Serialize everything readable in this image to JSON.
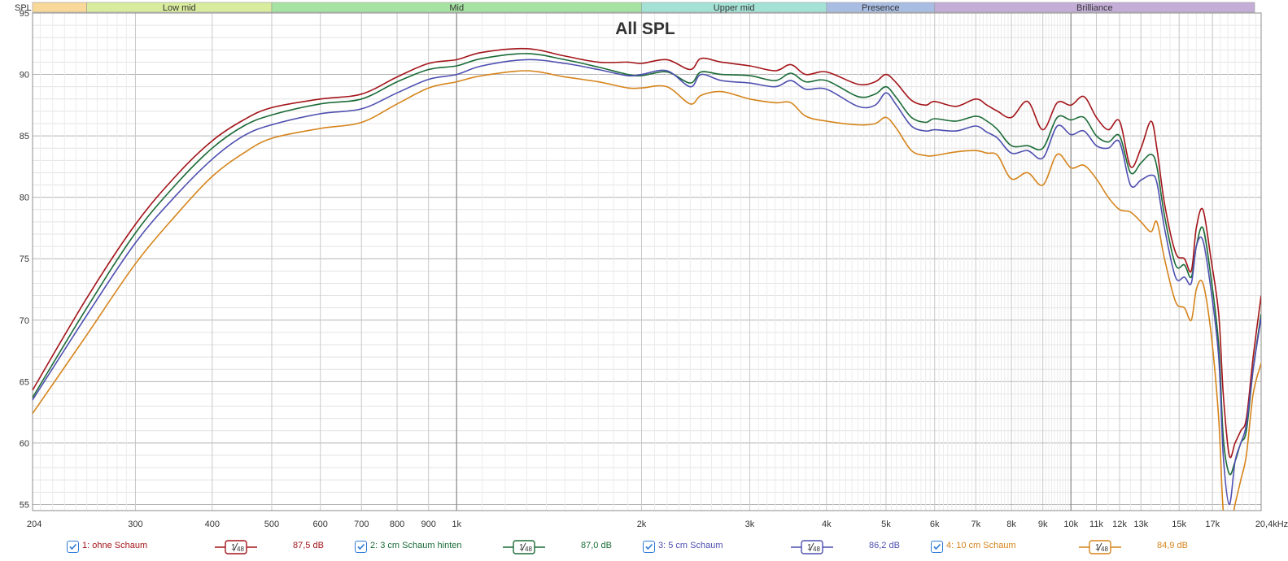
{
  "chart_data": {
    "type": "line",
    "title": "All SPL",
    "ylabel": "SPL",
    "x_scale": "log",
    "xlim": [
      204,
      20400
    ],
    "ylim": [
      54.5,
      95
    ],
    "x_unit_label": "20,4kHz",
    "x_ticks": [
      {
        "v": 204,
        "label": "204"
      },
      {
        "v": 300,
        "label": "300"
      },
      {
        "v": 400,
        "label": "400"
      },
      {
        "v": 500,
        "label": "500"
      },
      {
        "v": 600,
        "label": "600"
      },
      {
        "v": 700,
        "label": "700"
      },
      {
        "v": 800,
        "label": "800"
      },
      {
        "v": 900,
        "label": "900"
      },
      {
        "v": 1000,
        "label": "1k"
      },
      {
        "v": 2000,
        "label": "2k"
      },
      {
        "v": 3000,
        "label": "3k"
      },
      {
        "v": 4000,
        "label": "4k"
      },
      {
        "v": 5000,
        "label": "5k"
      },
      {
        "v": 6000,
        "label": "6k"
      },
      {
        "v": 7000,
        "label": "7k"
      },
      {
        "v": 8000,
        "label": "8k"
      },
      {
        "v": 9000,
        "label": "9k"
      },
      {
        "v": 10000,
        "label": "10k"
      },
      {
        "v": 11000,
        "label": "11k"
      },
      {
        "v": 12000,
        "label": "12k"
      },
      {
        "v": 13000,
        "label": "13k"
      },
      {
        "v": 15000,
        "label": "15k"
      },
      {
        "v": 17000,
        "label": "17k"
      }
    ],
    "y_ticks": [
      {
        "v": 95,
        "label": "95"
      },
      {
        "v": 90,
        "label": "90"
      },
      {
        "v": 85,
        "label": "85"
      },
      {
        "v": 80,
        "label": "80"
      },
      {
        "v": 75,
        "label": "75"
      },
      {
        "v": 70,
        "label": "70"
      },
      {
        "v": 65,
        "label": "65"
      },
      {
        "v": 60,
        "label": "60"
      },
      {
        "v": 55,
        "label": "55"
      }
    ],
    "bands": [
      {
        "name": "",
        "from": 204,
        "to": 250,
        "color": "#f8d99a"
      },
      {
        "name": "Low mid",
        "from": 250,
        "to": 500,
        "color": "#d9ec9e"
      },
      {
        "name": "Mid",
        "from": 500,
        "to": 2000,
        "color": "#a6e3a2"
      },
      {
        "name": "Upper mid",
        "from": 2000,
        "to": 4000,
        "color": "#a4e2d6"
      },
      {
        "name": "Presence",
        "from": 4000,
        "to": 6000,
        "color": "#a9bde3"
      },
      {
        "name": "Brilliance",
        "from": 6000,
        "to": 20000,
        "color": "#c4aed8"
      }
    ],
    "x": [
      204,
      250,
      300,
      350,
      400,
      450,
      500,
      600,
      700,
      800,
      900,
      1000,
      1100,
      1300,
      1500,
      1700,
      1900,
      2000,
      2200,
      2400,
      2500,
      2700,
      3000,
      3300,
      3500,
      3700,
      4000,
      4500,
      4800,
      5000,
      5200,
      5500,
      5800,
      6000,
      6500,
      7000,
      7300,
      7600,
      8000,
      8500,
      9000,
      9500,
      10000,
      10500,
      11000,
      11500,
      12000,
      12500,
      13000,
      13500,
      13800,
      14200,
      14800,
      15300,
      15700,
      16000,
      16400,
      16900,
      17400,
      17700,
      18100,
      18500,
      18900,
      19300,
      19800,
      20400
    ],
    "series": [
      {
        "name": "1: ohne Schaum",
        "color": "#a31419",
        "smoothing": "1/48",
        "level": "87,5 dB",
        "values": [
          64.3,
          71.8,
          77.8,
          81.8,
          84.6,
          86.3,
          87.3,
          88.0,
          88.4,
          89.8,
          90.9,
          91.2,
          91.8,
          92.1,
          91.5,
          91.0,
          91.0,
          90.9,
          91.2,
          90.4,
          91.3,
          91.0,
          90.7,
          90.3,
          90.8,
          90.0,
          90.2,
          89.2,
          89.4,
          90.0,
          89.3,
          87.9,
          87.5,
          87.8,
          87.4,
          88.0,
          87.5,
          87.0,
          86.5,
          87.8,
          85.5,
          87.7,
          87.5,
          88.2,
          86.5,
          85.5,
          86.2,
          82.5,
          84.0,
          86.2,
          84.0,
          79.5,
          75.5,
          75.0,
          74.0,
          77.5,
          79.0,
          75.0,
          70.5,
          64.0,
          59.0,
          60.0,
          61.0,
          62.0,
          67.0,
          72.0
        ]
      },
      {
        "name": "2: 3 cm Schaum hinten",
        "color": "#1b6b37",
        "smoothing": "1/48",
        "level": "87,0 dB",
        "values": [
          63.7,
          71.0,
          77.1,
          81.1,
          84.0,
          85.8,
          86.7,
          87.6,
          88.0,
          89.4,
          90.4,
          90.7,
          91.3,
          91.7,
          91.2,
          90.6,
          90.0,
          89.9,
          90.2,
          89.3,
          90.2,
          90.0,
          89.9,
          89.5,
          90.1,
          89.4,
          89.5,
          88.2,
          88.4,
          89.0,
          88.1,
          86.5,
          86.1,
          86.4,
          86.2,
          86.6,
          86.2,
          85.5,
          84.2,
          84.2,
          84.0,
          86.5,
          86.3,
          86.5,
          85.0,
          84.5,
          85.0,
          82.0,
          82.8,
          83.5,
          82.5,
          78.5,
          74.5,
          74.5,
          73.5,
          76.0,
          77.5,
          73.5,
          68.0,
          60.5,
          57.5,
          58.5,
          60.0,
          61.0,
          66.0,
          70.5
        ]
      },
      {
        "name": "3: 5 cm Schaum",
        "color": "#4e4fb0",
        "smoothing": "1/48",
        "level": "86,2 dB",
        "values": [
          63.5,
          70.4,
          76.3,
          80.2,
          83.1,
          85.0,
          85.9,
          86.8,
          87.2,
          88.5,
          89.6,
          90.0,
          90.7,
          91.2,
          90.9,
          90.4,
          89.9,
          90.0,
          90.3,
          89.0,
          90.0,
          89.5,
          89.3,
          89.0,
          89.5,
          88.8,
          88.8,
          87.4,
          87.5,
          88.5,
          87.5,
          85.8,
          85.4,
          85.5,
          85.4,
          85.8,
          85.3,
          84.8,
          83.6,
          83.8,
          83.2,
          85.8,
          85.1,
          85.4,
          84.2,
          84.0,
          84.5,
          81.0,
          81.4,
          81.8,
          81.2,
          77.5,
          73.5,
          73.5,
          73.0,
          76.0,
          76.5,
          72.5,
          67.0,
          59.0,
          55.0,
          58.5,
          60.0,
          61.5,
          66.0,
          70.2
        ]
      },
      {
        "name": "4: 10 cm Schaum",
        "color": "#d5841b",
        "smoothing": "1/48",
        "level": "84,9 dB",
        "values": [
          62.4,
          68.8,
          74.6,
          78.6,
          81.7,
          83.6,
          84.8,
          85.6,
          86.1,
          87.6,
          88.9,
          89.4,
          89.9,
          90.3,
          89.8,
          89.4,
          88.9,
          88.9,
          89.0,
          87.6,
          88.3,
          88.6,
          88.0,
          87.7,
          87.7,
          86.6,
          86.2,
          85.9,
          86.0,
          86.5,
          85.6,
          83.8,
          83.4,
          83.4,
          83.7,
          83.8,
          83.6,
          83.4,
          81.5,
          82.0,
          81.0,
          83.5,
          82.4,
          82.6,
          81.5,
          80.0,
          79.0,
          78.8,
          78.0,
          77.2,
          78.0,
          75.0,
          71.5,
          71.0,
          70.0,
          72.5,
          73.0,
          69.0,
          62.0,
          54.5,
          53.0,
          55.0,
          57.0,
          59.0,
          64.0,
          66.5
        ]
      }
    ]
  },
  "legend": [
    {
      "name": "1: ohne Schaum",
      "smooth_num": "1",
      "smooth_den": "48",
      "level": "87,5 dB",
      "color": "#a31419",
      "checked": true
    },
    {
      "name": "2: 3 cm Schaum hinten",
      "smooth_num": "1",
      "smooth_den": "48",
      "level": "87,0 dB",
      "color": "#1b6b37",
      "checked": true
    },
    {
      "name": "3: 5 cm Schaum",
      "smooth_num": "1",
      "smooth_den": "48",
      "level": "86,2 dB",
      "color": "#4e4fb0",
      "checked": true
    },
    {
      "name": "4: 10 cm Schaum",
      "smooth_num": "1",
      "smooth_den": "48",
      "level": "84,9 dB",
      "color": "#d5841b",
      "checked": true
    }
  ],
  "colors": {
    "grid": "#d6d6d6",
    "grid_major": "#9a9a9a",
    "axis": "#444444",
    "check": "#2a7ad6"
  }
}
